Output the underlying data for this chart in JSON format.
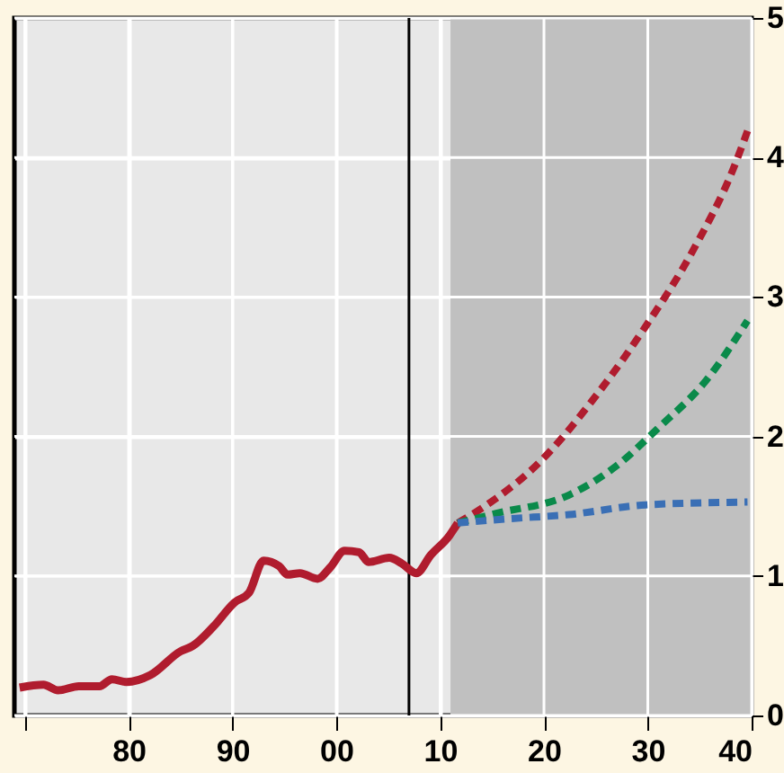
{
  "chart_data": {
    "type": "line",
    "xlim": [
      1969,
      2040
    ],
    "ylim": [
      0,
      5
    ],
    "xticks": [
      {
        "value": 1970,
        "label": null
      },
      {
        "value": 1980,
        "label": "80"
      },
      {
        "value": 1990,
        "label": "90"
      },
      {
        "value": 2000,
        "label": "00"
      },
      {
        "value": 2010,
        "label": "10"
      },
      {
        "value": 2020,
        "label": "20"
      },
      {
        "value": 2030,
        "label": "30"
      },
      {
        "value": 2040,
        "label": "40"
      }
    ],
    "yticks": [
      0,
      1,
      2,
      3,
      4,
      5
    ],
    "grid": true,
    "marker": "none",
    "bands": [
      {
        "axis": "x",
        "from": 2011,
        "to": 2040,
        "color": "#c0c0c0"
      }
    ],
    "ref_lines": [
      {
        "axis": "x",
        "value": 2007,
        "color": "#000000",
        "line_style": "solid"
      }
    ],
    "series": [
      {
        "color": "#b01c2e",
        "line_style": "solid",
        "x": [
          1969.5,
          1971.8,
          1973.2,
          1975.2,
          1977.2,
          1978.4,
          1979.8,
          1982.1,
          1985,
          1986.2,
          1988.2,
          1990.2,
          1991.6,
          1993.0,
          1994.5,
          1995.3,
          1996.5,
          1998.2,
          1999.4,
          2000.8,
          2002.2,
          2003.1,
          2005.1,
          2006.3,
          2007.7,
          2009.1,
          2010.9,
          2011.7
        ],
        "values": [
          0.2,
          0.22,
          0.18,
          0.21,
          0.21,
          0.26,
          0.24,
          0.29,
          0.46,
          0.5,
          0.64,
          0.81,
          0.88,
          1.11,
          1.07,
          1.01,
          1.02,
          0.98,
          1.06,
          1.18,
          1.17,
          1.1,
          1.13,
          1.09,
          1.02,
          1.15,
          1.29,
          1.38
        ]
      },
      {
        "color": "#b01c2e",
        "line_style": "dashed",
        "x": [
          2011.7,
          2014.3,
          2019.5,
          2025.2,
          2029.8,
          2034.4,
          2038.4,
          2039.6
        ],
        "values": [
          1.38,
          1.5,
          1.81,
          2.31,
          2.79,
          3.34,
          3.95,
          4.19
        ]
      },
      {
        "color": "#0a8a4a",
        "line_style": "dashed",
        "x": [
          2011.7,
          2015.5,
          2022.4,
          2027,
          2031,
          2035.6,
          2039.6
        ],
        "values": [
          1.38,
          1.45,
          1.58,
          1.79,
          2.06,
          2.4,
          2.83
        ]
      },
      {
        "color": "#3a6fb5",
        "line_style": "dashed",
        "x": [
          2011.7,
          2016.6,
          2022.4,
          2029.8,
          2039.6
        ],
        "values": [
          1.38,
          1.41,
          1.44,
          1.51,
          1.53
        ]
      }
    ]
  }
}
